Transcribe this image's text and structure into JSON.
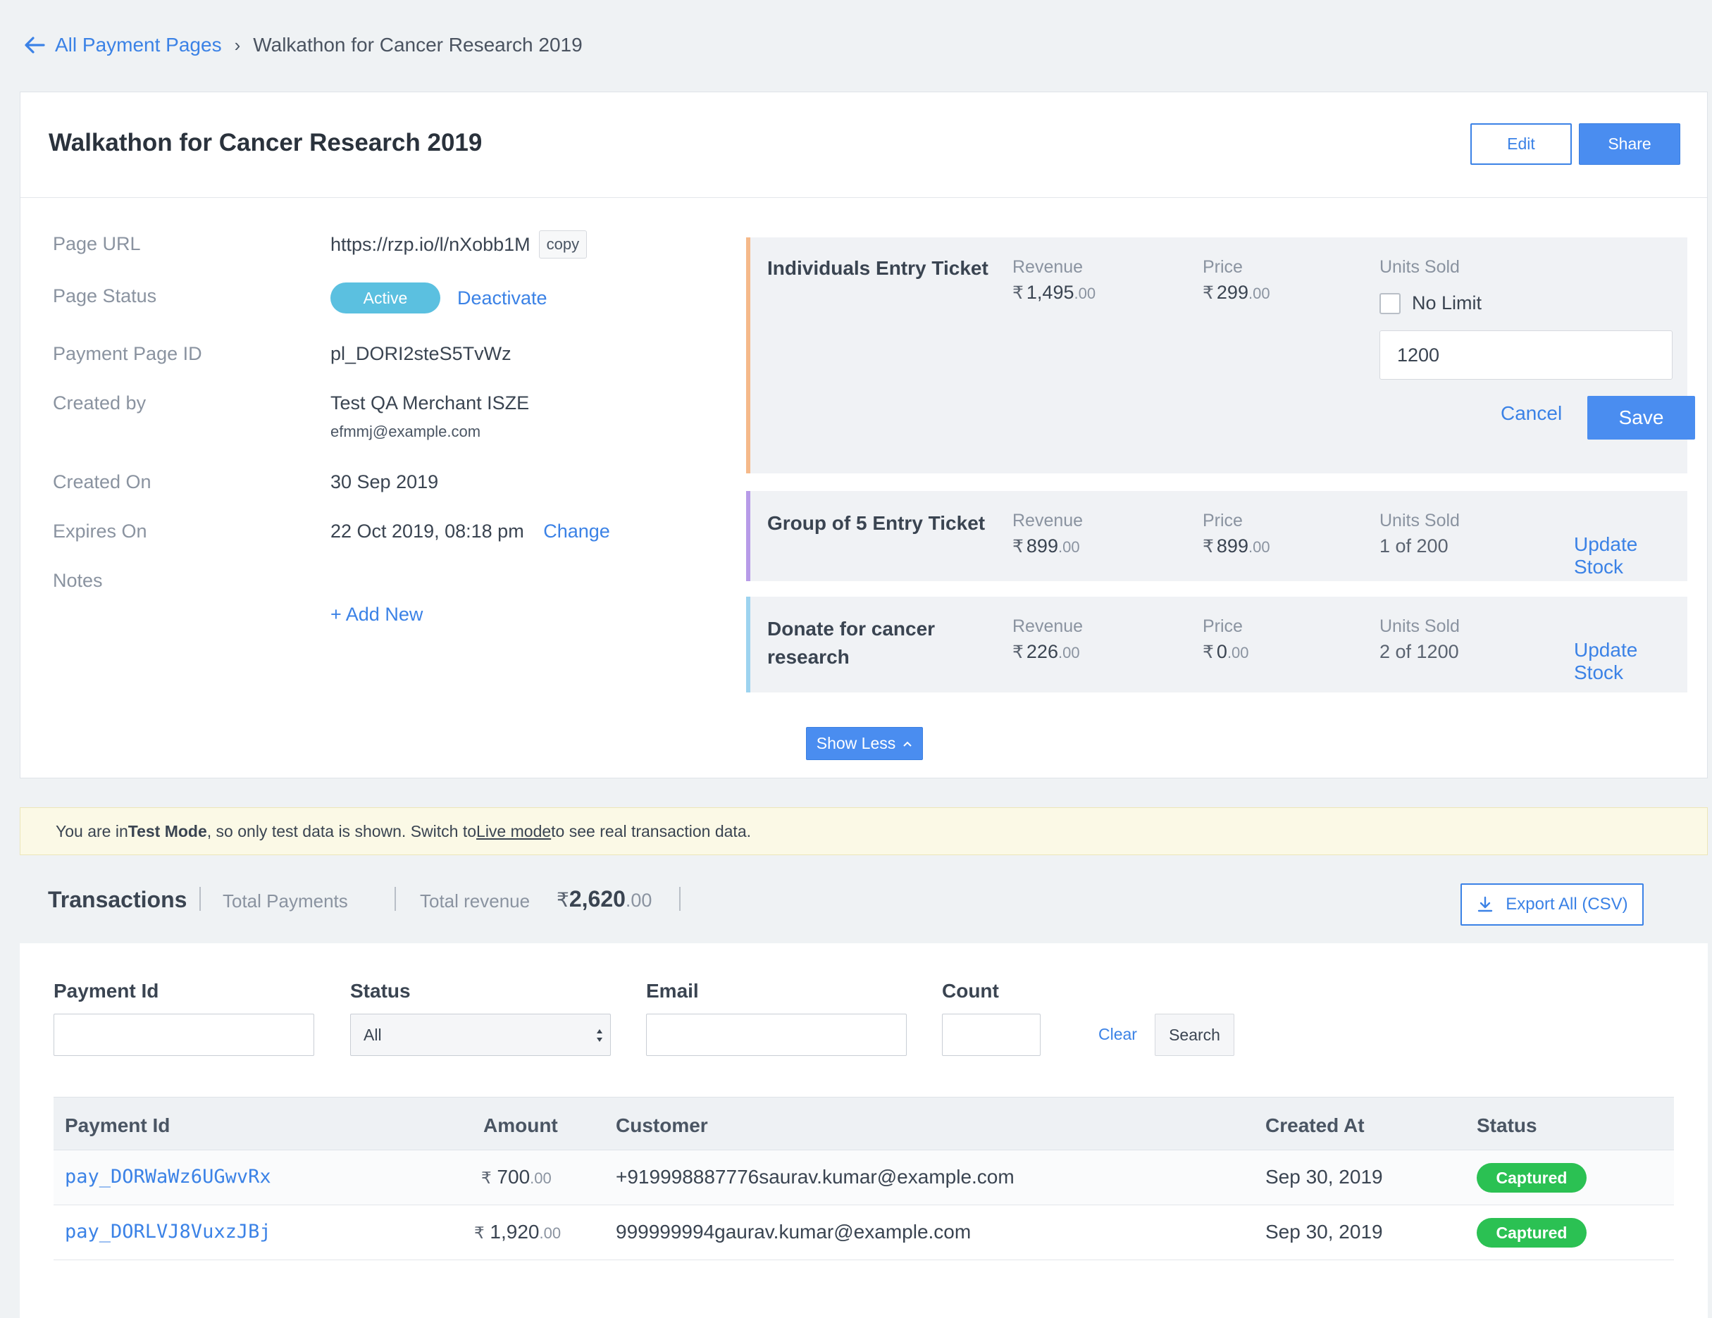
{
  "breadcrumb": {
    "parent": "All Payment Pages",
    "separator": "›",
    "current": "Walkathon for Cancer Research 2019"
  },
  "header": {
    "title": "Walkathon for Cancer Research 2019",
    "edit_label": "Edit",
    "share_label": "Share"
  },
  "details": {
    "page_url_label": "Page URL",
    "page_url": "https://rzp.io/l/nXobb1M",
    "copy_label": "copy",
    "page_status_label": "Page Status",
    "status": "Active",
    "deactivate_label": "Deactivate",
    "page_id_label": "Payment Page ID",
    "page_id": "pl_DORI2steS5TvWz",
    "created_by_label": "Created by",
    "created_by": "Test QA Merchant ISZE",
    "created_by_email": "efmmj@example.com",
    "created_on_label": "Created On",
    "created_on": "30 Sep 2019",
    "expires_on_label": "Expires On",
    "expires_on": "22 Oct 2019, 08:18 pm",
    "change_label": "Change",
    "notes_label": "Notes",
    "add_new_label": "+ Add New"
  },
  "items": [
    {
      "name": "Individuals Entry Ticket",
      "revenue_label": "Revenue",
      "revenue_rupee": "₹",
      "revenue_main": "1,495",
      "revenue_paise": ".00",
      "price_label": "Price",
      "price_main": "299",
      "price_paise": ".00",
      "units_label": "Units Sold",
      "no_limit_label": "No Limit",
      "stock_input": "1200",
      "cancel_label": "Cancel",
      "save_label": "Save",
      "accent": "#f5b98a"
    },
    {
      "name": "Group of 5 Entry Ticket",
      "revenue_label": "Revenue",
      "revenue_main": "899",
      "revenue_paise": ".00",
      "price_label": "Price",
      "price_main": "899",
      "price_paise": ".00",
      "units_label": "Units Sold",
      "units_value": "1 of 200",
      "update_label": "Update Stock",
      "accent": "#b79be8"
    },
    {
      "name_line1": "Donate for cancer",
      "name_line2": "research",
      "revenue_label": "Revenue",
      "revenue_main": "226",
      "revenue_paise": ".00",
      "price_label": "Price",
      "price_main": "0",
      "price_paise": ".00",
      "units_label": "Units Sold",
      "units_value": "2 of 1200",
      "update_label": "Update Stock",
      "accent": "#9dd3ef"
    }
  ],
  "show_less_label": "Show Less",
  "banner": {
    "part1": "You are in ",
    "bold": "Test Mode",
    "part2": ", so only test data is shown. Switch to ",
    "link": "Live mode",
    "part3": " to see real transaction data."
  },
  "transactions": {
    "title": "Transactions",
    "total_payments_label": "Total Payments",
    "total_revenue_label": "Total revenue",
    "rupee": "₹",
    "total_revenue_main": "2,620",
    "total_revenue_paise": ".00",
    "export_label": "Export All (CSV)"
  },
  "filters": {
    "payment_id_label": "Payment Id",
    "status_label": "Status",
    "status_value": "All",
    "email_label": "Email",
    "count_label": "Count",
    "clear_label": "Clear",
    "search_label": "Search"
  },
  "table": {
    "columns": [
      "Payment Id",
      "Amount",
      "Customer",
      "Created At",
      "Status"
    ],
    "rows": [
      {
        "payment_id": "pay_DORWaWz6UGwvRx",
        "amount_main": "700",
        "amount_paise": ".00",
        "customer": "+919998887776saurav.kumar@example.com",
        "created_at": "Sep 30, 2019",
        "status": "Captured"
      },
      {
        "payment_id": "pay_DORLVJ8VuxzJBj",
        "amount_main": "1,920",
        "amount_paise": ".00",
        "customer": "999999994gaurav.kumar@example.com",
        "created_at": "Sep 30, 2019",
        "status": "Captured"
      }
    ]
  }
}
